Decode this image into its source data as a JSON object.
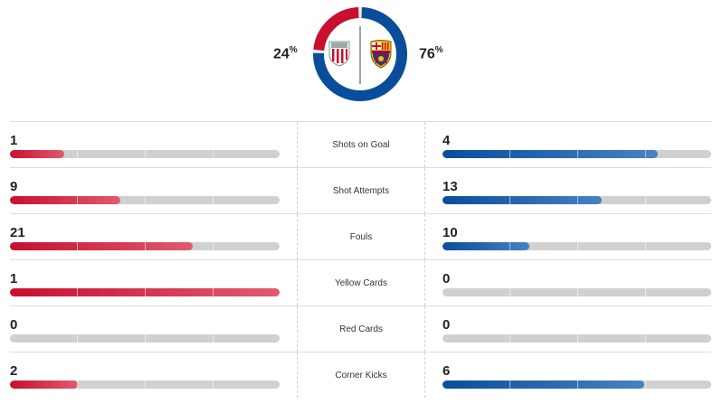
{
  "possession": {
    "home_value": "24",
    "away_value": "76",
    "unit": "%",
    "home_fraction": 0.24,
    "away_fraction": 0.76,
    "home_color": "#c8102e",
    "away_color": "#0a4d9b",
    "home_crest_icon": "athletic-bilbao-crest-icon",
    "away_crest_icon": "fc-barcelona-crest-icon"
  },
  "stats": [
    {
      "label": "Shots on Goal",
      "home": "1",
      "away": "4"
    },
    {
      "label": "Shot Attempts",
      "home": "9",
      "away": "13"
    },
    {
      "label": "Fouls",
      "home": "21",
      "away": "10"
    },
    {
      "label": "Yellow Cards",
      "home": "1",
      "away": "0"
    },
    {
      "label": "Red Cards",
      "home": "0",
      "away": "0"
    },
    {
      "label": "Corner Kicks",
      "home": "2",
      "away": "6"
    }
  ]
}
